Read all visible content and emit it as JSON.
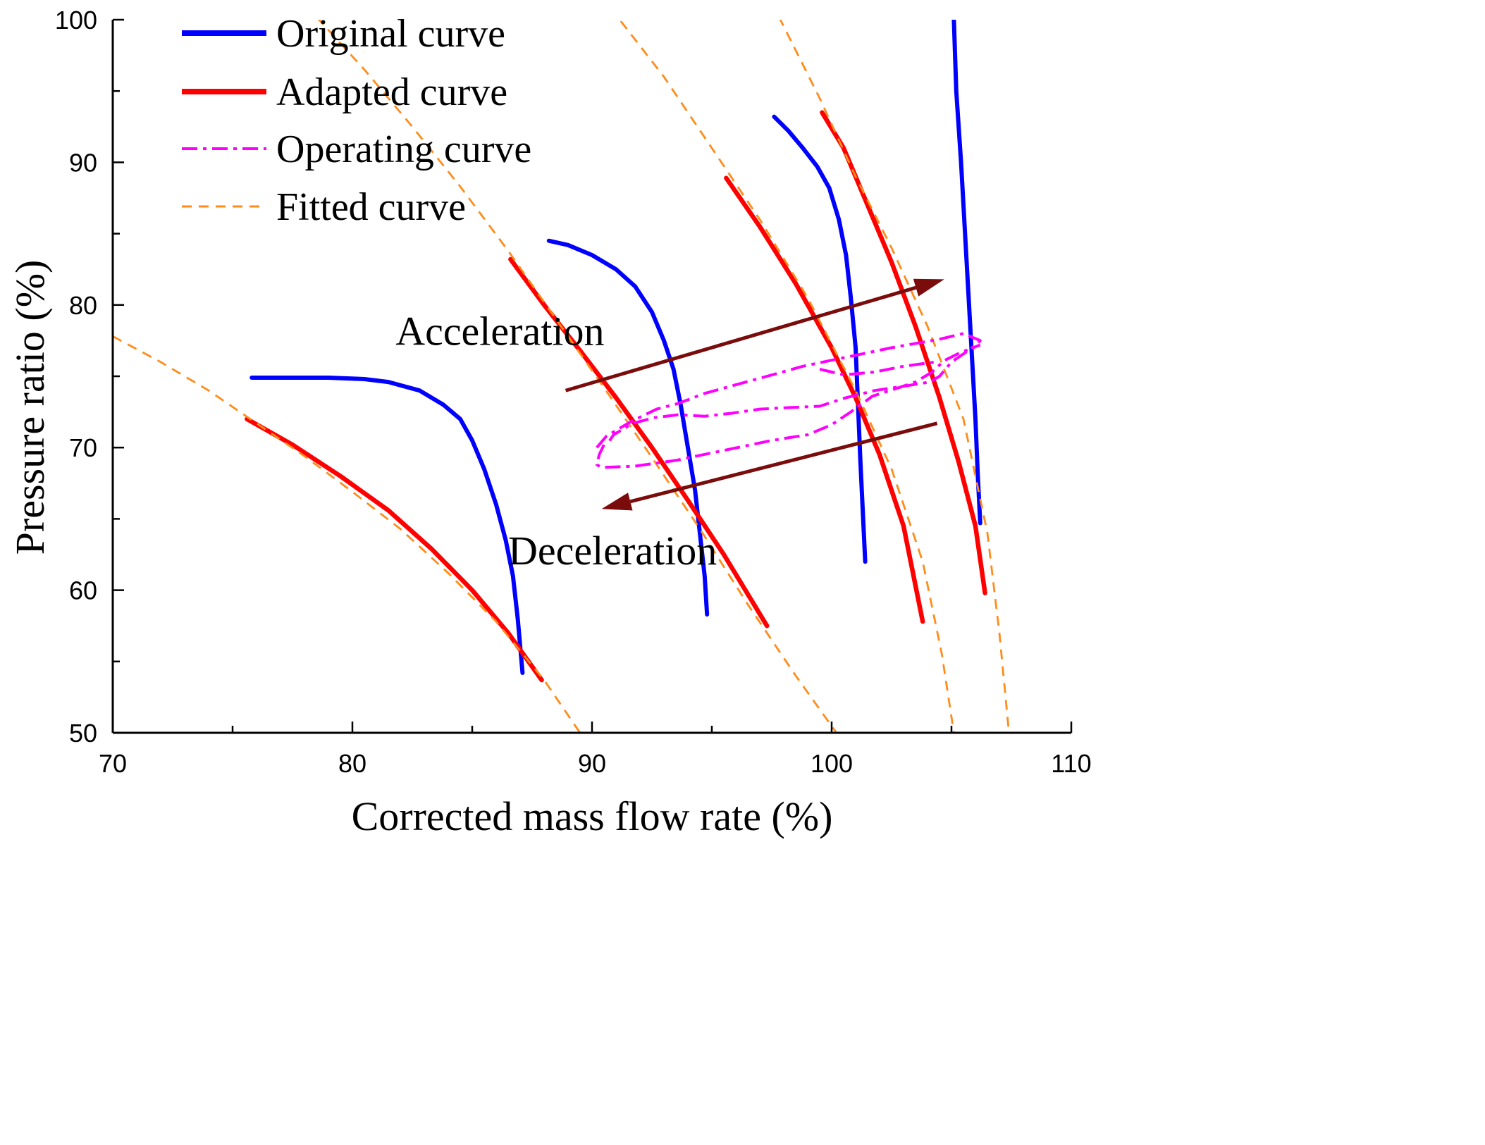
{
  "chart_data": {
    "type": "line",
    "title": "",
    "xlabel": "Corrected mass flow rate (%)",
    "ylabel": "Pressure ratio (%)",
    "xlim": [
      70,
      110
    ],
    "ylim": [
      50,
      100
    ],
    "x_ticks": [
      70,
      80,
      90,
      100,
      110
    ],
    "y_ticks": [
      50,
      60,
      70,
      80,
      90,
      100
    ],
    "x_tick_labels": [
      "70",
      "80",
      "90",
      "100",
      "110"
    ],
    "y_tick_labels": [
      "50",
      "60",
      "70",
      "80",
      "90",
      "100"
    ],
    "grid": false,
    "legend": {
      "position": "top-left",
      "entries": [
        {
          "name": "Original curve",
          "color": "#0000ff",
          "style": "solid"
        },
        {
          "name": "Adapted curve",
          "color": "#ff0000",
          "style": "solid"
        },
        {
          "name": "Operating curve",
          "color": "#ff00ff",
          "style": "dash-dot"
        },
        {
          "name": "Fitted curve",
          "color": "#ff8c1a",
          "style": "dashed"
        }
      ]
    },
    "series": [
      {
        "name": "Original curve",
        "lines": [
          [
            [
              75.8,
              74.9
            ],
            [
              77.5,
              74.9
            ],
            [
              79.0,
              74.9
            ],
            [
              80.5,
              74.8
            ],
            [
              81.5,
              74.6
            ],
            [
              82.8,
              74.0
            ],
            [
              83.8,
              73.0
            ],
            [
              84.5,
              72.0
            ],
            [
              85.0,
              70.5
            ],
            [
              85.5,
              68.5
            ],
            [
              86.0,
              66.0
            ],
            [
              86.4,
              63.5
            ],
            [
              86.7,
              61.0
            ],
            [
              86.9,
              58.0
            ],
            [
              87.1,
              54.2
            ]
          ],
          [
            [
              88.2,
              84.5
            ],
            [
              89.0,
              84.2
            ],
            [
              90.0,
              83.5
            ],
            [
              91.0,
              82.5
            ],
            [
              91.8,
              81.3
            ],
            [
              92.5,
              79.5
            ],
            [
              93.0,
              77.5
            ],
            [
              93.4,
              75.5
            ],
            [
              93.7,
              73.0
            ],
            [
              94.0,
              70.0
            ],
            [
              94.3,
              67.0
            ],
            [
              94.5,
              64.0
            ],
            [
              94.7,
              61.0
            ],
            [
              94.8,
              58.3
            ]
          ],
          [
            [
              97.6,
              93.2
            ],
            [
              98.2,
              92.2
            ],
            [
              98.8,
              91.0
            ],
            [
              99.4,
              89.7
            ],
            [
              99.9,
              88.2
            ],
            [
              100.3,
              86.0
            ],
            [
              100.6,
              83.5
            ],
            [
              100.8,
              80.5
            ],
            [
              101.0,
              77.0
            ],
            [
              101.1,
              73.0
            ],
            [
              101.2,
              69.0
            ],
            [
              101.3,
              65.5
            ],
            [
              101.4,
              62.0
            ]
          ],
          [
            [
              105.1,
              100
            ],
            [
              105.2,
              95.0
            ],
            [
              105.4,
              90.0
            ],
            [
              105.6,
              84.0
            ],
            [
              105.8,
              78.0
            ],
            [
              106.0,
              72.0
            ],
            [
              106.1,
              68.0
            ],
            [
              106.2,
              64.7
            ]
          ]
        ]
      },
      {
        "name": "Adapted curve",
        "lines": [
          [
            [
              75.6,
              72.0
            ],
            [
              77.5,
              70.2
            ],
            [
              79.5,
              68.0
            ],
            [
              81.5,
              65.6
            ],
            [
              83.3,
              62.9
            ],
            [
              85.0,
              60.0
            ],
            [
              86.5,
              57.0
            ],
            [
              87.9,
              53.7
            ]
          ],
          [
            [
              86.6,
              83.2
            ],
            [
              88.0,
              80.0
            ],
            [
              89.5,
              76.8
            ],
            [
              91.0,
              73.5
            ],
            [
              92.5,
              70.0
            ],
            [
              94.0,
              66.3
            ],
            [
              95.5,
              62.5
            ],
            [
              97.3,
              57.5
            ]
          ],
          [
            [
              95.6,
              88.9
            ],
            [
              97.0,
              85.5
            ],
            [
              98.5,
              81.5
            ],
            [
              100.0,
              77.0
            ],
            [
              101.0,
              73.5
            ],
            [
              102.0,
              69.5
            ],
            [
              103.0,
              64.5
            ],
            [
              103.8,
              57.8
            ]
          ],
          [
            [
              99.6,
              93.5
            ],
            [
              100.5,
              91.0
            ],
            [
              101.5,
              87.0
            ],
            [
              102.5,
              83.0
            ],
            [
              103.5,
              78.5
            ],
            [
              104.5,
              73.5
            ],
            [
              105.3,
              69.0
            ],
            [
              106.0,
              64.5
            ],
            [
              106.4,
              59.8
            ]
          ]
        ]
      },
      {
        "name": "Fitted curve",
        "lines": [
          [
            [
              70.0,
              77.8
            ],
            [
              72.0,
              76.0
            ],
            [
              74.0,
              74.0
            ],
            [
              76.0,
              71.7
            ],
            [
              78.0,
              69.4
            ],
            [
              80.0,
              66.9
            ],
            [
              82.0,
              64.3
            ],
            [
              84.0,
              61.2
            ],
            [
              86.0,
              57.8
            ],
            [
              88.0,
              53.7
            ],
            [
              89.5,
              50.0
            ]
          ],
          [
            [
              78.5,
              100.2
            ],
            [
              80.5,
              96.5
            ],
            [
              82.5,
              92.5
            ],
            [
              84.5,
              88.3
            ],
            [
              86.5,
              83.8
            ],
            [
              88.5,
              79.0
            ],
            [
              90.5,
              74.2
            ],
            [
              92.5,
              69.3
            ],
            [
              94.5,
              64.3
            ],
            [
              96.5,
              59.0
            ],
            [
              98.5,
              54.0
            ],
            [
              100.2,
              50.0
            ]
          ],
          [
            [
              91.2,
              99.9
            ],
            [
              93.0,
              96.0
            ],
            [
              95.0,
              91.0
            ],
            [
              97.0,
              86.0
            ],
            [
              99.0,
              80.5
            ],
            [
              101.0,
              74.0
            ],
            [
              102.5,
              68.5
            ],
            [
              103.8,
              62.0
            ],
            [
              104.6,
              55.5
            ],
            [
              105.1,
              50.0
            ]
          ],
          [
            [
              97.8,
              100.2
            ],
            [
              99.5,
              94.5
            ],
            [
              101.0,
              89.0
            ],
            [
              102.5,
              84.0
            ],
            [
              104.0,
              78.5
            ],
            [
              105.5,
              72.0
            ],
            [
              106.5,
              64.0
            ],
            [
              107.0,
              57.0
            ],
            [
              107.4,
              50.0
            ]
          ]
        ]
      },
      {
        "name": "Operating curve",
        "lines": [
          [
            [
              90.2,
              70.0
            ],
            [
              90.6,
              70.8
            ],
            [
              91.6,
              71.8
            ],
            [
              92.7,
              72.7
            ],
            [
              93.6,
              73.1
            ],
            [
              94.7,
              73.8
            ],
            [
              96.0,
              74.4
            ],
            [
              97.3,
              75.0
            ],
            [
              98.8,
              75.7
            ],
            [
              100.5,
              76.3
            ],
            [
              102.5,
              77.0
            ],
            [
              104.5,
              77.6
            ],
            [
              105.5,
              78.0
            ],
            [
              106.2,
              77.5
            ],
            [
              106.1,
              77.3
            ],
            [
              105.7,
              76.8
            ],
            [
              105.0,
              76.0
            ],
            [
              104.5,
              75.0
            ],
            [
              104.1,
              74.6
            ],
            [
              103.0,
              74.3
            ],
            [
              101.8,
              74.0
            ],
            [
              100.6,
              73.5
            ],
            [
              99.5,
              72.9
            ],
            [
              98.2,
              72.8
            ],
            [
              97.0,
              72.7
            ],
            [
              95.8,
              72.4
            ],
            [
              94.7,
              72.2
            ],
            [
              93.6,
              72.3
            ],
            [
              92.6,
              72.1
            ],
            [
              91.7,
              71.7
            ],
            [
              90.9,
              70.9
            ],
            [
              90.7,
              70.4
            ]
          ],
          [
            [
              90.5,
              70.2
            ],
            [
              90.3,
              69.5
            ],
            [
              90.2,
              68.8
            ],
            [
              90.4,
              68.6
            ],
            [
              91.8,
              68.7
            ],
            [
              93.5,
              69.1
            ],
            [
              95.5,
              69.8
            ],
            [
              97.5,
              70.5
            ],
            [
              99.0,
              70.9
            ],
            [
              100.0,
              71.6
            ],
            [
              100.8,
              72.5
            ],
            [
              101.7,
              73.6
            ],
            [
              102.8,
              74.2
            ],
            [
              103.5,
              74.6
            ],
            [
              104.2,
              75.3
            ],
            [
              104.7,
              76.1
            ],
            [
              105.3,
              76.6
            ],
            [
              105.9,
              77.0
            ],
            [
              106.2,
              77.2
            ]
          ],
          [
            [
              99.5,
              75.5
            ],
            [
              100.5,
              75.1
            ],
            [
              101.8,
              75.3
            ],
            [
              103.0,
              75.7
            ],
            [
              104.3,
              76.0
            ]
          ]
        ]
      }
    ],
    "annotations": [
      {
        "text": "Acceleration",
        "x": 81.8,
        "y": 77.2,
        "arrow_from": [
          88.9,
          74.0
        ],
        "arrow_to": [
          104.7,
          81.8
        ],
        "direction": "to upper-right"
      },
      {
        "text": "Deceleration",
        "x": 86.5,
        "y": 61.8,
        "arrow_from": [
          104.4,
          71.7
        ],
        "arrow_to": [
          90.4,
          65.7
        ],
        "direction": "to lower-left"
      }
    ]
  },
  "colors": {
    "original": "#0000ff",
    "adapted": "#ff0000",
    "operating": "#ff00ff",
    "fitted": "#ff8c1a",
    "arrow": "#7a0c0c",
    "axis": "#000000"
  }
}
